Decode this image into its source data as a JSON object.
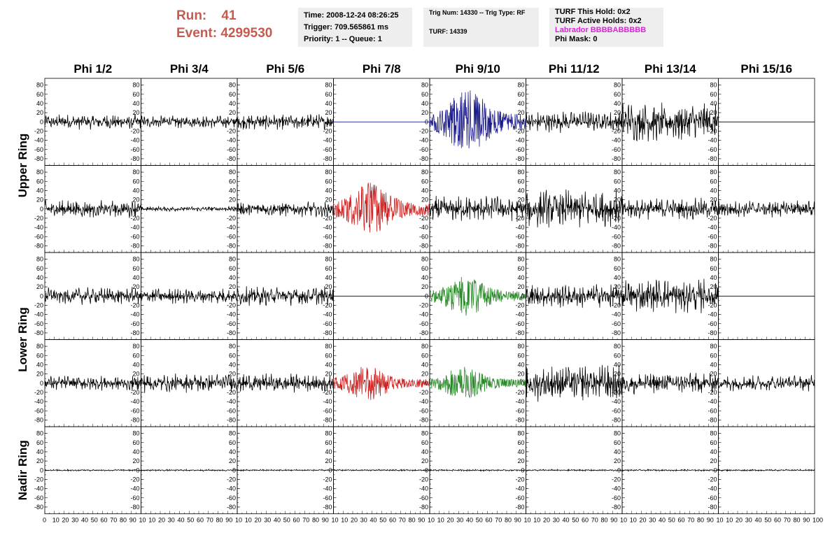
{
  "header": {
    "run_label": "Run:",
    "run_value": "41",
    "event_label": "Event:",
    "event_value": "4299530",
    "time": "Time: 2008-12-24 08:26:25",
    "trigger": "Trigger: 709.565861 ms",
    "priority": "Priority: 1 -- Queue: 1",
    "trig_num": "Trig Num: 14330 -- Trig Type: RF",
    "turf_num": "TURF: 14339",
    "turf_this_hold": "TURF This Hold: 0x2",
    "turf_active_holds": "TURF Active Holds: 0x2",
    "labrador": "Labrador BBBBABBBBB",
    "phi_mask": "Phi Mask: 0"
  },
  "colors": {
    "header_red": "#c75a4f",
    "info_bg": "#eeeeee",
    "labrador_magenta": "#e020e0",
    "trace_black": "#000000",
    "trace_blue": "#1a1a8c",
    "trace_red": "#cc2222",
    "trace_green": "#2a8a2a"
  },
  "chart_data": {
    "type": "line",
    "columns": [
      "Phi 1/2",
      "Phi 3/4",
      "Phi 5/6",
      "Phi 7/8",
      "Phi 9/10",
      "Phi 11/12",
      "Phi 13/14",
      "Phi 15/16"
    ],
    "rows": [
      "Upper Ring",
      "",
      "Lower Ring",
      "",
      "Nadir Ring"
    ],
    "ylim": [
      -90,
      90
    ],
    "y_ticks": [
      -80,
      -60,
      -40,
      -20,
      0,
      20,
      40,
      60,
      80
    ],
    "xlim": [
      0,
      100
    ],
    "x_ticks": [
      0,
      10,
      20,
      30,
      40,
      50,
      60,
      70,
      80,
      90,
      100
    ],
    "x_tick_text": [
      "0",
      "10",
      "20",
      "30",
      "40",
      "50",
      "60",
      "70",
      "80",
      "90",
      "10",
      "10",
      "20",
      "30",
      "40",
      "50",
      "60",
      "70",
      "80",
      "90",
      "10",
      "10",
      "20",
      "30",
      "40",
      "50",
      "60",
      "70",
      "80",
      "90",
      "10",
      "10",
      "20",
      "30",
      "40",
      "50",
      "60",
      "70",
      "80",
      "90",
      "10",
      "10",
      "20",
      "30",
      "40",
      "50",
      "60",
      "70",
      "80",
      "90",
      "10",
      "10",
      "20",
      "30",
      "40",
      "50",
      "60",
      "70",
      "80",
      "90",
      "10",
      "10",
      "20",
      "30",
      "40",
      "50",
      "60",
      "70",
      "80",
      "90",
      "10",
      "10",
      "20",
      "30",
      "40",
      "50",
      "60",
      "70",
      "80",
      "90",
      "100"
    ],
    "panels": [
      [
        {
          "color": "black",
          "amp": 18,
          "kind": "noise"
        },
        {
          "color": "black",
          "amp": 15,
          "kind": "noise"
        },
        {
          "color": "black",
          "amp": 18,
          "kind": "noise"
        },
        {
          "color": "blue",
          "amp": 0,
          "kind": "flat"
        },
        {
          "color": "blue",
          "amp": 80,
          "kind": "pulse",
          "peak": 40
        },
        {
          "color": "black",
          "amp": 25,
          "kind": "noise"
        },
        {
          "color": "black",
          "amp": 45,
          "kind": "noise"
        },
        {
          "color": "black",
          "amp": 0,
          "kind": "flat"
        }
      ],
      [
        {
          "color": "black",
          "amp": 20,
          "kind": "noise"
        },
        {
          "color": "black",
          "amp": 6,
          "kind": "noise"
        },
        {
          "color": "black",
          "amp": 18,
          "kind": "noise"
        },
        {
          "color": "red",
          "amp": 65,
          "kind": "pulse",
          "peak": 38
        },
        {
          "color": "black",
          "amp": 30,
          "kind": "noise"
        },
        {
          "color": "black",
          "amp": 45,
          "kind": "noise"
        },
        {
          "color": "black",
          "amp": 25,
          "kind": "noise"
        },
        {
          "color": "black",
          "amp": 20,
          "kind": "noise"
        }
      ],
      [
        {
          "color": "black",
          "amp": 20,
          "kind": "noise"
        },
        {
          "color": "black",
          "amp": 18,
          "kind": "noise"
        },
        {
          "color": "black",
          "amp": 22,
          "kind": "noise"
        },
        {
          "color": "black",
          "amp": 0,
          "kind": "flat"
        },
        {
          "color": "green",
          "amp": 48,
          "kind": "pulse",
          "peak": 38
        },
        {
          "color": "black",
          "amp": 28,
          "kind": "noise"
        },
        {
          "color": "black",
          "amp": 40,
          "kind": "noise"
        },
        {
          "color": "black",
          "amp": 0,
          "kind": "flat"
        }
      ],
      [
        {
          "color": "black",
          "amp": 18,
          "kind": "noise"
        },
        {
          "color": "black",
          "amp": 22,
          "kind": "noise"
        },
        {
          "color": "black",
          "amp": 22,
          "kind": "noise"
        },
        {
          "color": "red",
          "amp": 42,
          "kind": "pulse",
          "peak": 35
        },
        {
          "color": "green",
          "amp": 40,
          "kind": "pulse",
          "peak": 35
        },
        {
          "color": "black",
          "amp": 42,
          "kind": "noise"
        },
        {
          "color": "black",
          "amp": 25,
          "kind": "noise"
        },
        {
          "color": "black",
          "amp": 18,
          "kind": "noise"
        }
      ],
      [
        {
          "color": "black",
          "amp": 2,
          "kind": "noise"
        },
        {
          "color": "black",
          "amp": 2,
          "kind": "noise"
        },
        {
          "color": "black",
          "amp": 2,
          "kind": "noise"
        },
        {
          "color": "black",
          "amp": 2,
          "kind": "noise"
        },
        {
          "color": "black",
          "amp": 2,
          "kind": "noise"
        },
        {
          "color": "black",
          "amp": 2,
          "kind": "noise"
        },
        {
          "color": "black",
          "amp": 2,
          "kind": "noise"
        },
        {
          "color": "black",
          "amp": 2,
          "kind": "noise"
        }
      ]
    ]
  }
}
